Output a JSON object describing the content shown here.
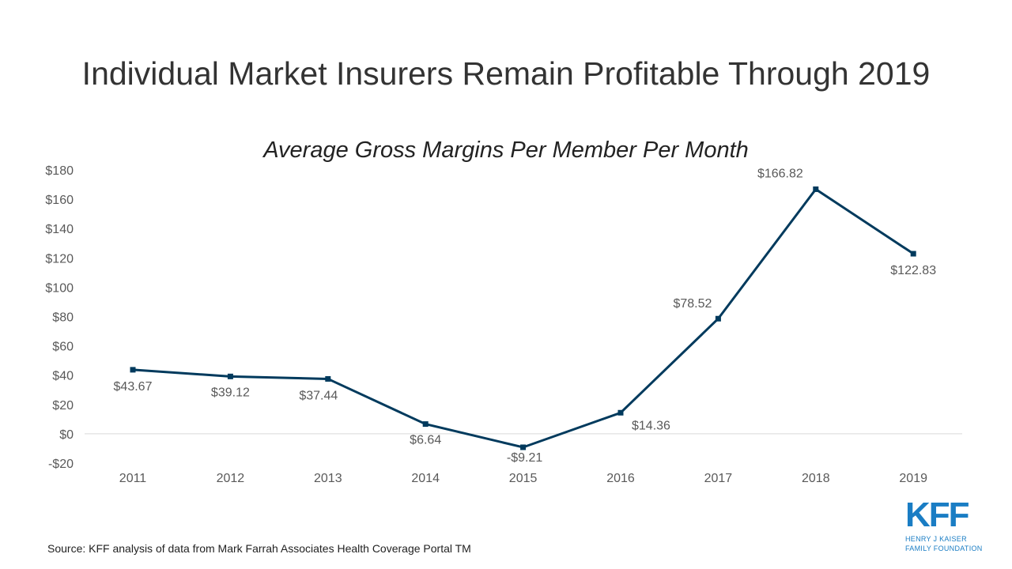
{
  "slide_title": "Individual Market Insurers Remain Profitable Through 2019",
  "source": "Source: KFF analysis of data from Mark Farrah Associates Health Coverage Portal TM",
  "logo": {
    "mark": "KFF",
    "line1": "HENRY J KAISER",
    "line2": "FAMILY FOUNDATION",
    "color": "#1a7dc4"
  },
  "chart_data": {
    "type": "line",
    "title": "Average Gross Margins Per Member Per Month",
    "categories": [
      "2011",
      "2012",
      "2013",
      "2014",
      "2015",
      "2016",
      "2017",
      "2018",
      "2019"
    ],
    "values": [
      43.67,
      39.12,
      37.44,
      6.64,
      -9.21,
      14.36,
      78.52,
      166.82,
      122.83
    ],
    "data_labels": [
      "$43.67",
      "$39.12",
      "$37.44",
      "$6.64",
      "-$9.21",
      "$14.36",
      "$78.52",
      "$166.82",
      "$122.83"
    ],
    "ylim": [
      -20,
      180
    ],
    "yticks": [
      180,
      160,
      140,
      120,
      100,
      80,
      60,
      40,
      20,
      0,
      -20
    ],
    "ytick_labels": [
      "$180",
      "$160",
      "$140",
      "$120",
      "$100",
      "$80",
      "$60",
      "$40",
      "$20",
      "$0",
      "-$20"
    ],
    "xlabel": "",
    "ylabel": "",
    "grid": false,
    "legend": "none",
    "line_color": "#003a5d",
    "text_color": "#595959"
  }
}
